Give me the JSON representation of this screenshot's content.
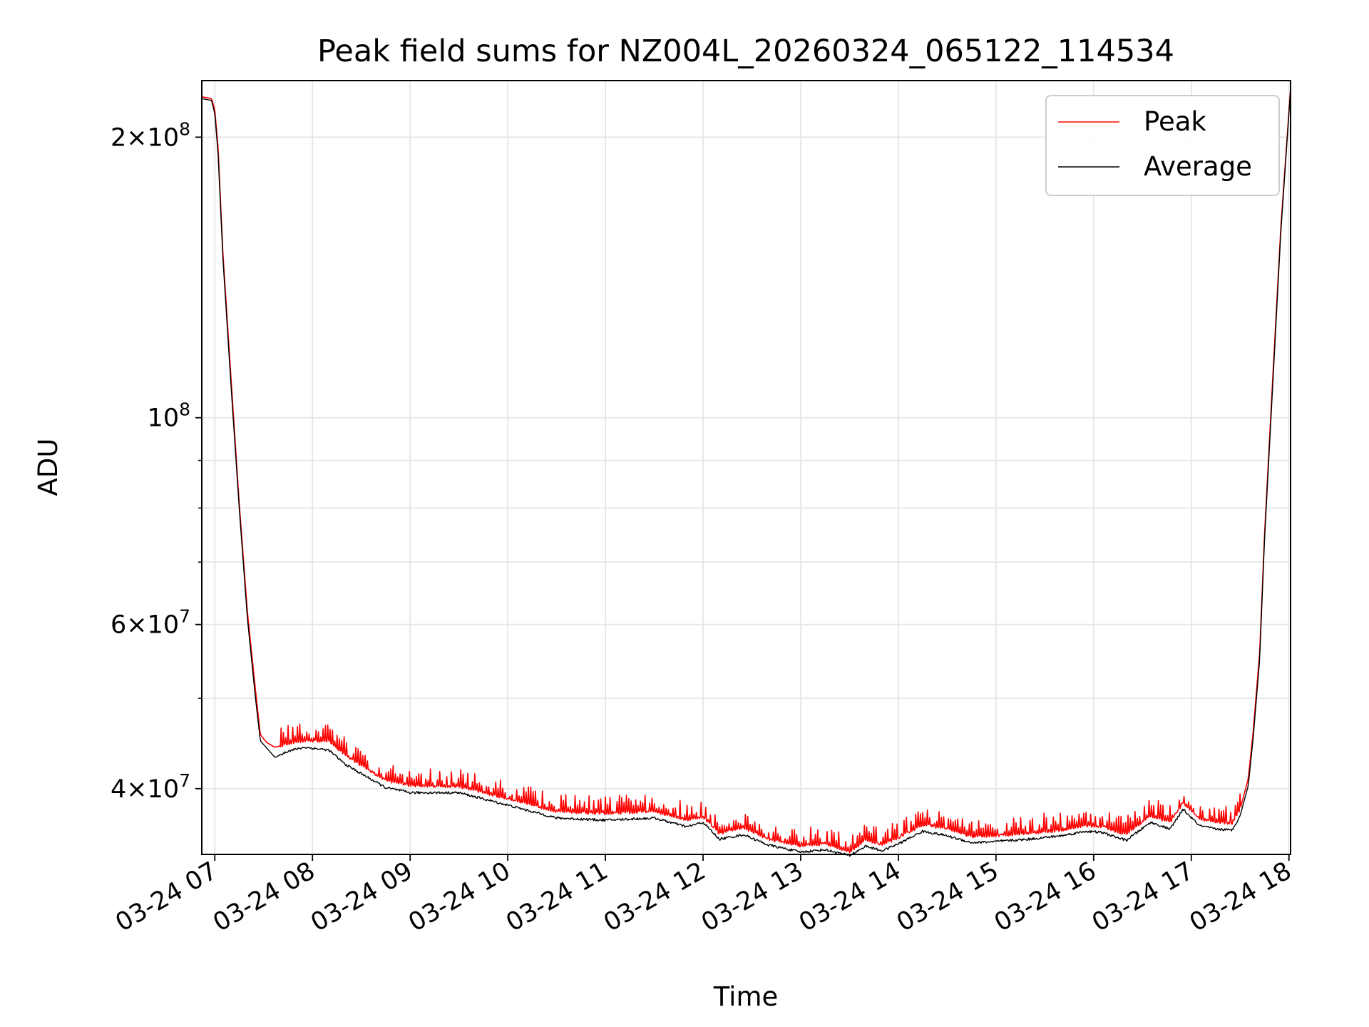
{
  "chart_data": {
    "type": "line",
    "title": "Peak field sums for NZ004L_20260324_065122_114534",
    "xlabel": "Time",
    "ylabel": "ADU",
    "y_scale": "log",
    "xlim": [
      "2026-03-24 06:52",
      "2026-03-24 18:01"
    ],
    "ylim": [
      34000000,
      230000000
    ],
    "grid": true,
    "legend_position": "top-right",
    "x_ticks": [
      "03-24 07",
      "03-24 08",
      "03-24 09",
      "03-24 10",
      "03-24 11",
      "03-24 12",
      "03-24 13",
      "03-24 14",
      "03-24 15",
      "03-24 16",
      "03-24 17",
      "03-24 18"
    ],
    "y_ticks": [
      {
        "value": 40000000,
        "mantissa": "4",
        "exp": "7"
      },
      {
        "value": 60000000,
        "mantissa": "6",
        "exp": "7"
      },
      {
        "value": 100000000,
        "mantissa": "",
        "exp": "8"
      },
      {
        "value": 200000000,
        "mantissa": "2",
        "exp": "8"
      }
    ],
    "series": [
      {
        "name": "Peak",
        "color": "#ff0000",
        "x": [
          "2026-03-24 06:52",
          "2026-03-24 06:58",
          "2026-03-24 07:00",
          "2026-03-24 07:02",
          "2026-03-24 07:05",
          "2026-03-24 07:10",
          "2026-03-24 07:15",
          "2026-03-24 07:20",
          "2026-03-24 07:25",
          "2026-03-24 07:28",
          "2026-03-24 07:32",
          "2026-03-24 07:37",
          "2026-03-24 07:45",
          "2026-03-24 07:55",
          "2026-03-24 08:10",
          "2026-03-24 08:20",
          "2026-03-24 08:30",
          "2026-03-24 08:45",
          "2026-03-24 09:00",
          "2026-03-24 09:30",
          "2026-03-24 10:00",
          "2026-03-24 10:30",
          "2026-03-24 11:00",
          "2026-03-24 11:30",
          "2026-03-24 11:50",
          "2026-03-24 12:00",
          "2026-03-24 12:10",
          "2026-03-24 12:25",
          "2026-03-24 12:40",
          "2026-03-24 12:50",
          "2026-03-24 13:00",
          "2026-03-24 13:15",
          "2026-03-24 13:30",
          "2026-03-24 13:40",
          "2026-03-24 13:50",
          "2026-03-24 14:00",
          "2026-03-24 14:15",
          "2026-03-24 14:30",
          "2026-03-24 14:45",
          "2026-03-24 15:00",
          "2026-03-24 15:20",
          "2026-03-24 15:40",
          "2026-03-24 15:55",
          "2026-03-24 16:05",
          "2026-03-24 16:20",
          "2026-03-24 16:35",
          "2026-03-24 16:47",
          "2026-03-24 16:55",
          "2026-03-24 17:05",
          "2026-03-24 17:15",
          "2026-03-24 17:25",
          "2026-03-24 17:30",
          "2026-03-24 17:35",
          "2026-03-24 17:38",
          "2026-03-24 17:42",
          "2026-03-24 17:45",
          "2026-03-24 17:50",
          "2026-03-24 17:55",
          "2026-03-24 18:01"
        ],
        "values": [
          221000000,
          220000000,
          214000000,
          195000000,
          150000000,
          110000000,
          81000000,
          62000000,
          51000000,
          45700000,
          44800000,
          44300000,
          44700000,
          45000000,
          45000000,
          43500000,
          42300000,
          40800000,
          40300000,
          40200000,
          39000000,
          37800000,
          37600000,
          37800000,
          37000000,
          37300000,
          35800000,
          36300000,
          35300000,
          35000000,
          34700000,
          34900000,
          34200000,
          35200000,
          34800000,
          35400000,
          36600000,
          36200000,
          35500000,
          35600000,
          35800000,
          36100000,
          36500000,
          36400000,
          35700000,
          37400000,
          36800000,
          38600000,
          37100000,
          36800000,
          36700000,
          38000000,
          41000000,
          46000000,
          56000000,
          75000000,
          110000000,
          160000000,
          226000000
        ]
      },
      {
        "name": "Average",
        "color": "#000000",
        "x": [
          "2026-03-24 06:52",
          "2026-03-24 06:58",
          "2026-03-24 07:00",
          "2026-03-24 07:02",
          "2026-03-24 07:05",
          "2026-03-24 07:10",
          "2026-03-24 07:15",
          "2026-03-24 07:20",
          "2026-03-24 07:25",
          "2026-03-24 07:28",
          "2026-03-24 07:32",
          "2026-03-24 07:37",
          "2026-03-24 07:45",
          "2026-03-24 07:55",
          "2026-03-24 08:10",
          "2026-03-24 08:20",
          "2026-03-24 08:30",
          "2026-03-24 08:45",
          "2026-03-24 09:00",
          "2026-03-24 09:30",
          "2026-03-24 10:00",
          "2026-03-24 10:30",
          "2026-03-24 11:00",
          "2026-03-24 11:30",
          "2026-03-24 11:50",
          "2026-03-24 12:00",
          "2026-03-24 12:10",
          "2026-03-24 12:25",
          "2026-03-24 12:40",
          "2026-03-24 12:50",
          "2026-03-24 13:00",
          "2026-03-24 13:15",
          "2026-03-24 13:30",
          "2026-03-24 13:40",
          "2026-03-24 13:50",
          "2026-03-24 14:00",
          "2026-03-24 14:15",
          "2026-03-24 14:30",
          "2026-03-24 14:45",
          "2026-03-24 15:00",
          "2026-03-24 15:20",
          "2026-03-24 15:40",
          "2026-03-24 15:55",
          "2026-03-24 16:05",
          "2026-03-24 16:20",
          "2026-03-24 16:35",
          "2026-03-24 16:47",
          "2026-03-24 16:55",
          "2026-03-24 17:05",
          "2026-03-24 17:15",
          "2026-03-24 17:25",
          "2026-03-24 17:30",
          "2026-03-24 17:35",
          "2026-03-24 17:38",
          "2026-03-24 17:42",
          "2026-03-24 17:45",
          "2026-03-24 17:50",
          "2026-03-24 17:55",
          "2026-03-24 18:01"
        ],
        "values": [
          220000000,
          219000000,
          212000000,
          192000000,
          148000000,
          108000000,
          80000000,
          61000000,
          50000000,
          45000000,
          44200000,
          43200000,
          43900000,
          44300000,
          44000000,
          42500000,
          41500000,
          40100000,
          39600000,
          39600000,
          38400000,
          37200000,
          37000000,
          37200000,
          36400000,
          36800000,
          35300000,
          35700000,
          34800000,
          34500000,
          34200000,
          34400000,
          33900000,
          34700000,
          34300000,
          34900000,
          36000000,
          35600000,
          35000000,
          35100000,
          35300000,
          35600000,
          36000000,
          35900000,
          35200000,
          36800000,
          36200000,
          38000000,
          36500000,
          36200000,
          36100000,
          37400000,
          40300000,
          45300000,
          55000000,
          74000000,
          108000000,
          158000000,
          225000000
        ]
      }
    ]
  }
}
